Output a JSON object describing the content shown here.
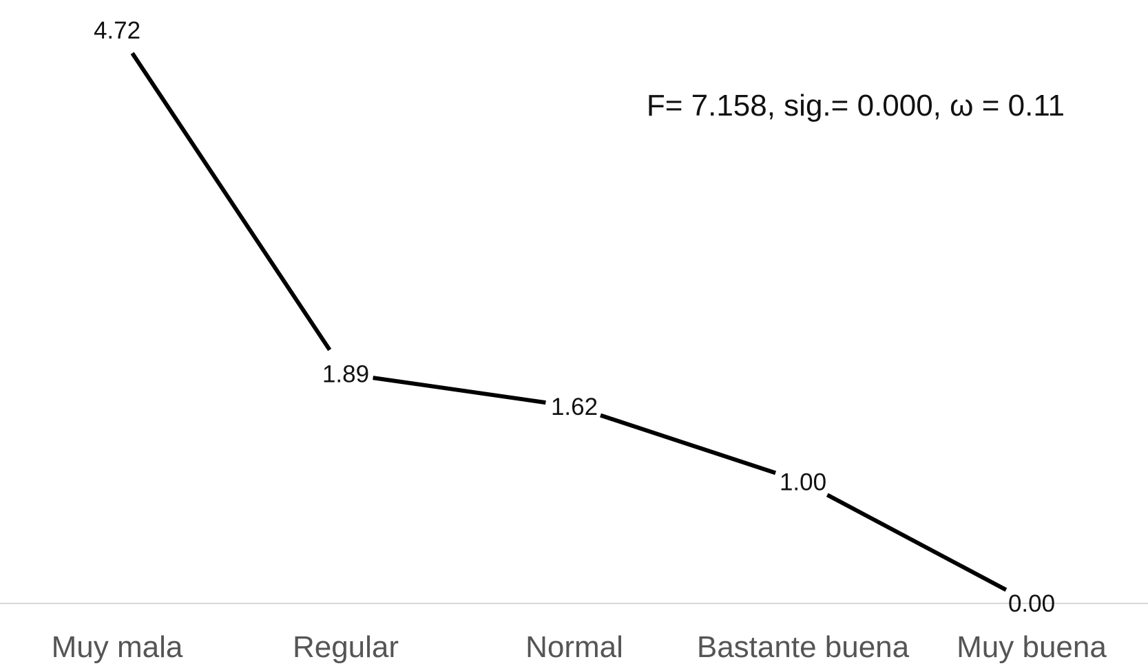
{
  "chart_data": {
    "type": "line",
    "categories": [
      "Muy mala",
      "Regular",
      "Normal",
      "Bastante buena",
      "Muy buena"
    ],
    "values": [
      4.72,
      1.89,
      1.62,
      1.0,
      0.0
    ],
    "value_labels": [
      "4.72",
      "1.89",
      "1.62",
      "1.00",
      "0.00"
    ],
    "annotation": "F= 7.158, sig.= 0.000, ω = 0.11",
    "title": "",
    "xlabel": "",
    "ylabel": "",
    "ylim": [
      0,
      4.72
    ],
    "grid": false,
    "legend": "none",
    "colors": {
      "line": "#000000",
      "axis": "#d9d9d9",
      "tick_text": "#555555",
      "label_text": "#111111"
    }
  }
}
